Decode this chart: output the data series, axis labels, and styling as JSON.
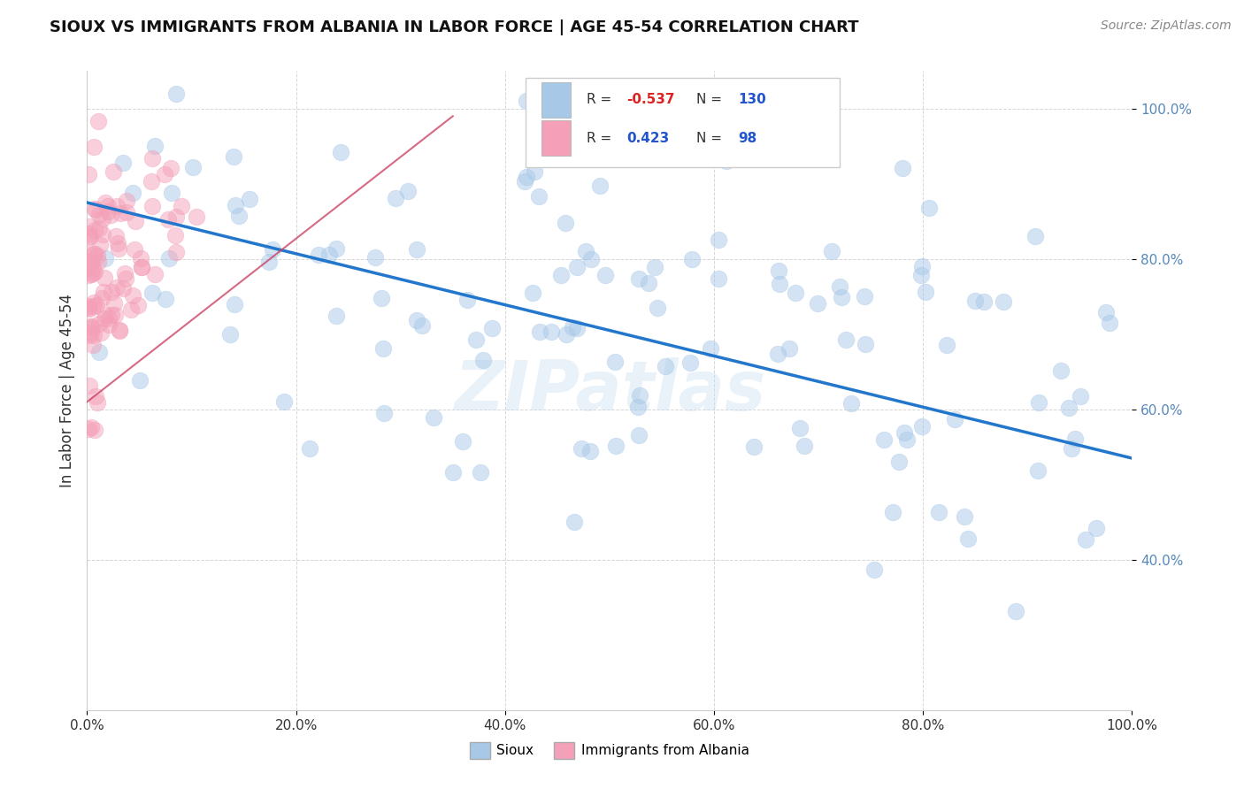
{
  "title": "SIOUX VS IMMIGRANTS FROM ALBANIA IN LABOR FORCE | AGE 45-54 CORRELATION CHART",
  "source_text": "Source: ZipAtlas.com",
  "ylabel": "In Labor Force | Age 45-54",
  "watermark": "ZIPatlas",
  "legend": {
    "blue_label": "Sioux",
    "pink_label": "Immigrants from Albania",
    "blue_R": "-0.537",
    "blue_N": "130",
    "pink_R": "0.423",
    "pink_N": "98"
  },
  "blue_color": "#a8c8e8",
  "pink_color": "#f4a0b8",
  "trend_blue": "#2277cc",
  "trend_pink": "#cc4466",
  "bg_color": "#ffffff",
  "grid_color": "#cccccc",
  "title_color": "#111111",
  "source_color": "#888888",
  "watermark_color": "#c8dff0",
  "axis_label_color": "#5588bb",
  "tick_color": "#333333",
  "xlim": [
    0.0,
    1.0
  ],
  "ylim": [
    0.2,
    1.05
  ],
  "xticks": [
    0.0,
    0.2,
    0.4,
    0.6,
    0.8,
    1.0
  ],
  "yticks": [
    0.4,
    0.6,
    0.8,
    1.0
  ],
  "blue_trend_x0": 0.0,
  "blue_trend_y0": 0.875,
  "blue_trend_x1": 1.0,
  "blue_trend_y1": 0.535,
  "pink_trend_x0": 0.0,
  "pink_trend_y0": 0.61,
  "pink_trend_x1": 0.35,
  "pink_trend_y1": 0.99,
  "scatter_size": 180,
  "scatter_alpha": 0.5
}
